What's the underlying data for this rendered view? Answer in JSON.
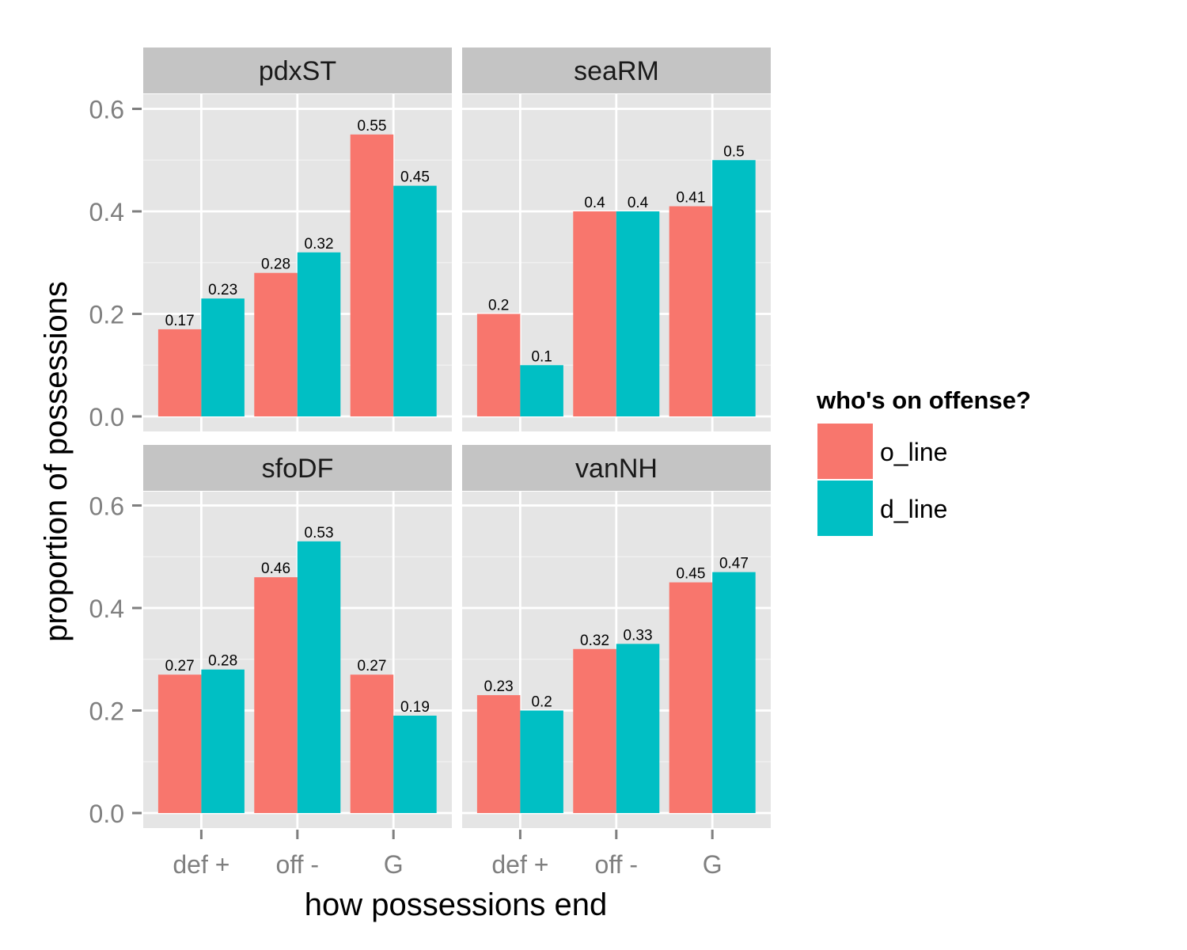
{
  "chart_data": {
    "type": "bar",
    "layout": "facet-grid-2x2",
    "categories": [
      "def +",
      "off -",
      "G"
    ],
    "xlabel": "how possessions end",
    "ylabel": "proportion of possessions",
    "ylim": [
      0,
      0.6
    ],
    "y_ticks": [
      "0.0",
      "0.2",
      "0.4",
      "0.6"
    ],
    "grid": true,
    "legend": {
      "title": "who's on offense?",
      "position": "right",
      "entries": [
        {
          "name": "o_line",
          "color": "#F8766D"
        },
        {
          "name": "d_line",
          "color": "#00BFC4"
        }
      ]
    },
    "panels": [
      {
        "title": "pdxST",
        "series": [
          {
            "name": "o_line",
            "values": [
              0.17,
              0.28,
              0.55
            ],
            "labels": [
              "0.17",
              "0.28",
              "0.55"
            ]
          },
          {
            "name": "d_line",
            "values": [
              0.23,
              0.32,
              0.45
            ],
            "labels": [
              "0.23",
              "0.32",
              "0.45"
            ]
          }
        ]
      },
      {
        "title": "seaRM",
        "series": [
          {
            "name": "o_line",
            "values": [
              0.2,
              0.4,
              0.41
            ],
            "labels": [
              "0.2",
              "0.4",
              "0.41"
            ]
          },
          {
            "name": "d_line",
            "values": [
              0.1,
              0.4,
              0.5
            ],
            "labels": [
              "0.1",
              "0.4",
              "0.5"
            ]
          }
        ]
      },
      {
        "title": "sfoDF",
        "series": [
          {
            "name": "o_line",
            "values": [
              0.27,
              0.46,
              0.27
            ],
            "labels": [
              "0.27",
              "0.46",
              "0.27"
            ]
          },
          {
            "name": "d_line",
            "values": [
              0.28,
              0.53,
              0.19
            ],
            "labels": [
              "0.28",
              "0.53",
              "0.19"
            ]
          }
        ]
      },
      {
        "title": "vanNH",
        "series": [
          {
            "name": "o_line",
            "values": [
              0.23,
              0.32,
              0.45
            ],
            "labels": [
              "0.23",
              "0.32",
              "0.45"
            ]
          },
          {
            "name": "d_line",
            "values": [
              0.2,
              0.33,
              0.47
            ],
            "labels": [
              "0.2",
              "0.33",
              "0.47"
            ]
          }
        ]
      }
    ]
  }
}
